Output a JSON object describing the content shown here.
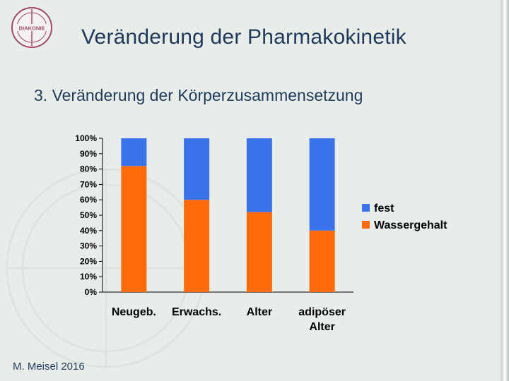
{
  "slide": {
    "title": "Veränderung der Pharmakokinetik",
    "subtitle": "3. Veränderung der Körperzusammensetzung",
    "footer": "M. Meisel 2016",
    "logo_text": "DIAKONIE"
  },
  "colors": {
    "fest": "#3b74ea",
    "wassergehalt": "#ff6a0a",
    "title_text": "#1f3a5c",
    "background": "#e8ede9"
  },
  "chart_data": {
    "type": "bar",
    "stacked": true,
    "percent_scale": true,
    "categories": [
      [
        "Neugeb."
      ],
      [
        "Erwachs."
      ],
      [
        "Alter"
      ],
      [
        "adipöser",
        "Alter"
      ]
    ],
    "series": [
      {
        "name": "Wassergehalt",
        "values": [
          82,
          60,
          52,
          40
        ]
      },
      {
        "name": "fest",
        "values": [
          18,
          40,
          48,
          60
        ]
      }
    ],
    "ylim": [
      0,
      100
    ],
    "yticks": [
      "0%",
      "10%",
      "20%",
      "30%",
      "40%",
      "50%",
      "60%",
      "70%",
      "80%",
      "90%",
      "100%"
    ],
    "legend_position": "right",
    "legend_order": [
      "fest",
      "Wassergehalt"
    ],
    "grid": false
  }
}
